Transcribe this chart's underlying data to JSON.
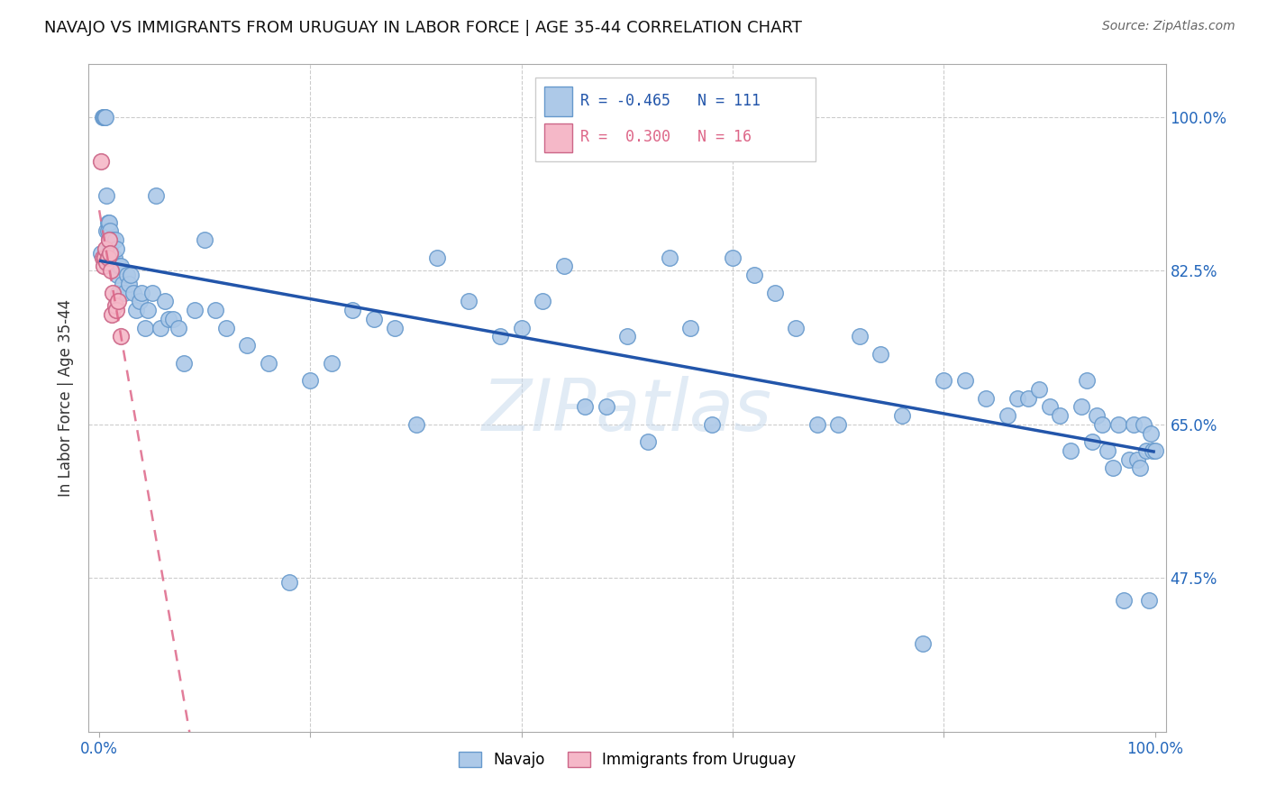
{
  "title": "NAVAJO VS IMMIGRANTS FROM URUGUAY IN LABOR FORCE | AGE 35-44 CORRELATION CHART",
  "source": "Source: ZipAtlas.com",
  "ylabel": "In Labor Force | Age 35-44",
  "xlim": [
    -0.01,
    1.01
  ],
  "ylim": [
    0.3,
    1.06
  ],
  "yticks": [
    0.475,
    0.65,
    0.825,
    1.0
  ],
  "ytick_labels": [
    "47.5%",
    "65.0%",
    "82.5%",
    "100.0%"
  ],
  "xtick_labels": [
    "0.0%",
    "100.0%"
  ],
  "navajo_R": -0.465,
  "navajo_N": 111,
  "uruguay_R": 0.3,
  "uruguay_N": 16,
  "navajo_color": "#adc9e8",
  "navajo_edge_color": "#6699cc",
  "uruguay_color": "#f5b8c8",
  "uruguay_edge_color": "#cc6688",
  "navajo_line_color": "#2255aa",
  "uruguay_line_color": "#dd6688",
  "watermark": "ZIPatlas",
  "legend_navajo": "Navajo",
  "legend_uruguay": "Immigrants from Uruguay",
  "navajo_x": [
    0.002,
    0.003,
    0.004,
    0.005,
    0.006,
    0.007,
    0.007,
    0.008,
    0.008,
    0.009,
    0.009,
    0.01,
    0.01,
    0.011,
    0.011,
    0.012,
    0.012,
    0.013,
    0.013,
    0.014,
    0.015,
    0.015,
    0.016,
    0.017,
    0.018,
    0.019,
    0.02,
    0.022,
    0.024,
    0.026,
    0.028,
    0.03,
    0.032,
    0.035,
    0.038,
    0.04,
    0.043,
    0.046,
    0.05,
    0.054,
    0.058,
    0.062,
    0.066,
    0.07,
    0.075,
    0.08,
    0.09,
    0.1,
    0.11,
    0.12,
    0.14,
    0.16,
    0.18,
    0.2,
    0.22,
    0.24,
    0.26,
    0.28,
    0.3,
    0.32,
    0.35,
    0.38,
    0.4,
    0.42,
    0.44,
    0.46,
    0.48,
    0.5,
    0.52,
    0.54,
    0.56,
    0.58,
    0.6,
    0.62,
    0.64,
    0.66,
    0.68,
    0.7,
    0.72,
    0.74,
    0.76,
    0.78,
    0.8,
    0.82,
    0.84,
    0.86,
    0.87,
    0.88,
    0.89,
    0.9,
    0.91,
    0.92,
    0.93,
    0.935,
    0.94,
    0.945,
    0.95,
    0.955,
    0.96,
    0.965,
    0.97,
    0.975,
    0.98,
    0.983,
    0.986,
    0.989,
    0.992,
    0.994,
    0.996,
    0.998,
    1.0
  ],
  "navajo_y": [
    0.845,
    1.0,
    1.0,
    1.0,
    1.0,
    0.91,
    0.87,
    0.88,
    0.87,
    0.88,
    0.86,
    0.87,
    0.85,
    0.86,
    0.84,
    0.86,
    0.84,
    0.86,
    0.83,
    0.84,
    0.86,
    0.83,
    0.85,
    0.82,
    0.8,
    0.83,
    0.83,
    0.81,
    0.8,
    0.82,
    0.81,
    0.82,
    0.8,
    0.78,
    0.79,
    0.8,
    0.76,
    0.78,
    0.8,
    0.91,
    0.76,
    0.79,
    0.77,
    0.77,
    0.76,
    0.72,
    0.78,
    0.86,
    0.78,
    0.76,
    0.74,
    0.72,
    0.47,
    0.7,
    0.72,
    0.78,
    0.77,
    0.76,
    0.65,
    0.84,
    0.79,
    0.75,
    0.76,
    0.79,
    0.83,
    0.67,
    0.67,
    0.75,
    0.63,
    0.84,
    0.76,
    0.65,
    0.84,
    0.82,
    0.8,
    0.76,
    0.65,
    0.65,
    0.75,
    0.73,
    0.66,
    0.4,
    0.7,
    0.7,
    0.68,
    0.66,
    0.68,
    0.68,
    0.69,
    0.67,
    0.66,
    0.62,
    0.67,
    0.7,
    0.63,
    0.66,
    0.65,
    0.62,
    0.6,
    0.65,
    0.45,
    0.61,
    0.65,
    0.61,
    0.6,
    0.65,
    0.62,
    0.45,
    0.64,
    0.62,
    0.62
  ],
  "uruguay_x": [
    0.002,
    0.003,
    0.004,
    0.005,
    0.006,
    0.007,
    0.008,
    0.009,
    0.01,
    0.011,
    0.012,
    0.013,
    0.015,
    0.016,
    0.018,
    0.02
  ],
  "uruguay_y": [
    0.95,
    0.84,
    0.83,
    0.84,
    0.85,
    0.835,
    0.84,
    0.86,
    0.845,
    0.825,
    0.775,
    0.8,
    0.785,
    0.78,
    0.79,
    0.75
  ]
}
